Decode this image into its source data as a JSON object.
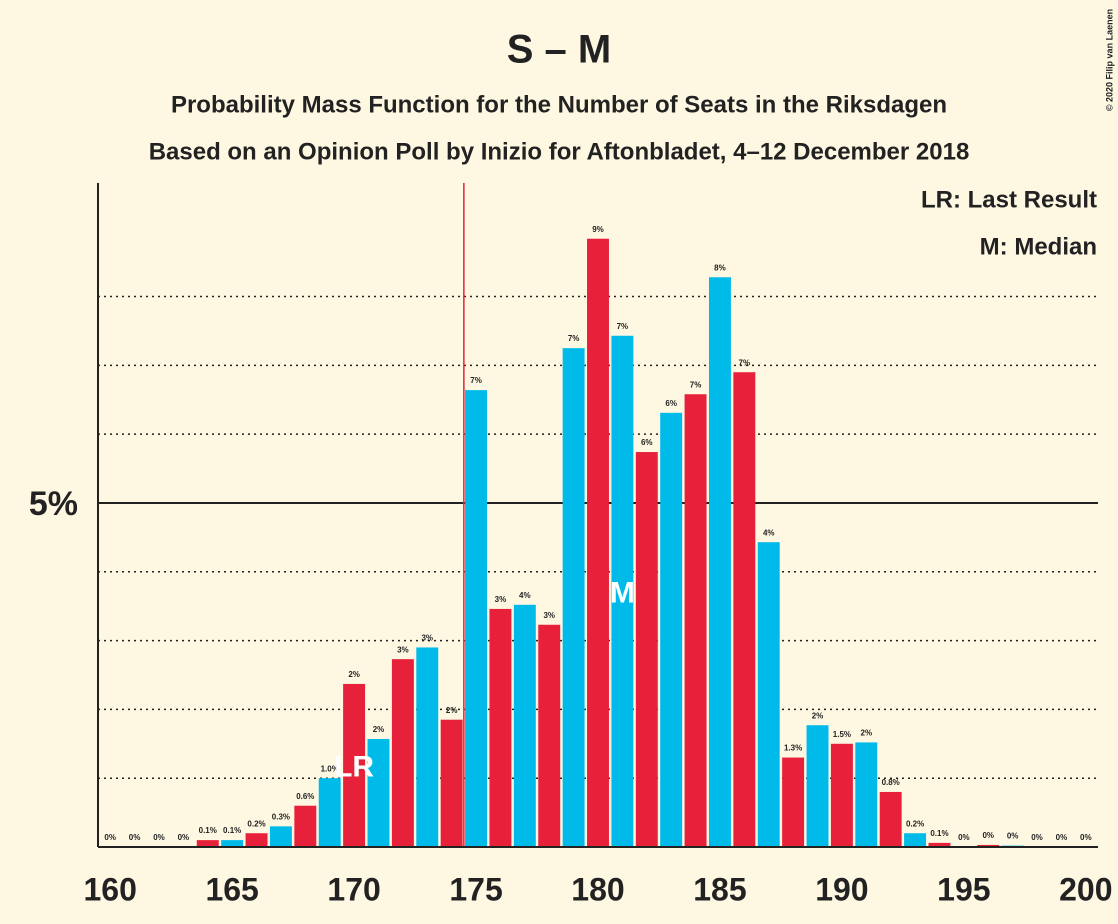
{
  "chart_data": {
    "type": "bar",
    "title": "S – M",
    "subtitle": "Probability Mass Function for the Number of Seats in the Riksdagen",
    "subtitle2": "Based on an Opinion Poll by Inizio for Aftonbladet, 4–12 December 2018",
    "copyright": "© 2020 Filip van Laenen",
    "legend": [
      "LR: Last Result",
      "M: Median"
    ],
    "x": [
      160,
      161,
      162,
      163,
      164,
      165,
      166,
      167,
      168,
      169,
      170,
      171,
      172,
      173,
      174,
      175,
      176,
      177,
      178,
      179,
      180,
      181,
      182,
      183,
      184,
      185,
      186,
      187,
      188,
      189,
      190,
      191,
      192,
      193,
      194,
      195,
      196,
      197,
      198,
      199,
      200
    ],
    "values": [
      0,
      0,
      0,
      0,
      0.1,
      0.1,
      0.2,
      0.3,
      0.6,
      1.0,
      2.37,
      1.57,
      2.73,
      2.9,
      1.85,
      6.64,
      3.46,
      3.52,
      3.23,
      7.25,
      8.84,
      7.43,
      5.74,
      6.31,
      6.58,
      8.28,
      6.9,
      4.43,
      1.3,
      1.77,
      1.5,
      1.52,
      0.8,
      0.2,
      0.06,
      0,
      0.03,
      0.02,
      0,
      0,
      0
    ],
    "value_labels": [
      "0%",
      "0%",
      "0%",
      "0%",
      "0.1%",
      "0.1%",
      "0.2%",
      "0.3%",
      "0.6%",
      "1.0%",
      "2%",
      "2%",
      "3%",
      "3%",
      "2%",
      "7%",
      "3%",
      "4%",
      "3%",
      "7%",
      "9%",
      "7%",
      "6%",
      "6%",
      "7%",
      "8%",
      "7%",
      "4%",
      "1.3%",
      "2%",
      "1.5%",
      "2%",
      "0.8%",
      "0.2%",
      "0.1%",
      "0%",
      "0%",
      "0%",
      "0%",
      "0%",
      "0%"
    ],
    "colors": [
      "#e8213a",
      "#00bbea",
      "#e8213a",
      "#00bbea",
      "#e8213a",
      "#00bbea",
      "#e8213a",
      "#00bbea",
      "#e8213a",
      "#00bbea",
      "#e8213a",
      "#00bbea",
      "#e8213a",
      "#00bbea",
      "#e8213a",
      "#00bbea",
      "#e8213a",
      "#00bbea",
      "#e8213a",
      "#00bbea",
      "#e8213a",
      "#00bbea",
      "#e8213a",
      "#00bbea",
      "#e8213a",
      "#00bbea",
      "#e8213a",
      "#00bbea",
      "#e8213a",
      "#00bbea",
      "#e8213a",
      "#00bbea",
      "#e8213a",
      "#00bbea",
      "#e8213a",
      "#00bbea",
      "#e8213a",
      "#00bbea",
      "#e8213a",
      "#00bbea",
      "#e8213a"
    ],
    "xlim": [
      159.5,
      200.5
    ],
    "xticks": [
      160,
      165,
      170,
      175,
      180,
      185,
      190,
      195,
      200
    ],
    "ylim": [
      0,
      9.65
    ],
    "yticks": [
      {
        "value": 5,
        "label": "5%"
      }
    ],
    "minor_gridlines": [
      1,
      2,
      3,
      4,
      6,
      7,
      8
    ],
    "majority_line_x": 174.5,
    "majority_line_color": "#e8213a",
    "annotations": [
      {
        "x": 170,
        "text": "LR"
      },
      {
        "x": 181,
        "text": "M"
      }
    ]
  }
}
